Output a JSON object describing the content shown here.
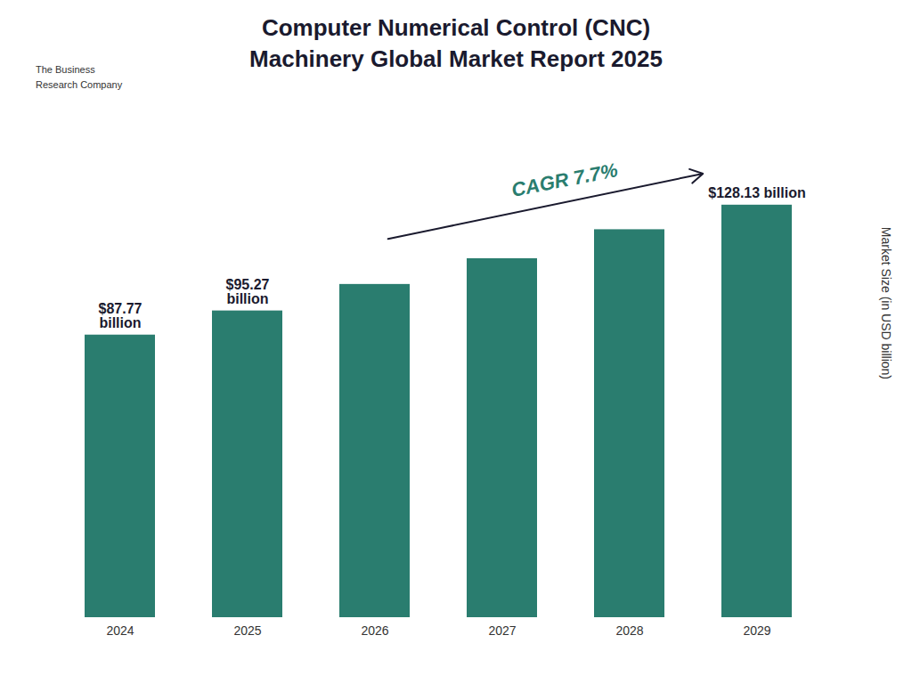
{
  "chart_data": {
    "type": "bar",
    "title": "Computer Numerical Control (CNC)\nMachinery Global Market Report 2025",
    "categories": [
      "2024",
      "2025",
      "2026",
      "2027",
      "2028",
      "2029"
    ],
    "values": [
      87.77,
      95.27,
      103.5,
      111.5,
      120.5,
      128.13
    ],
    "value_labels": [
      "$87.77\nbillion",
      "$95.27\nbillion",
      null,
      null,
      null,
      "$128.13 billion"
    ],
    "color": "#2a7d6f",
    "ylabel": "Market Size (in USD billion)",
    "ylim": [
      0,
      148
    ],
    "tick_labels": "x",
    "annotations": [
      "CAGR 7.7%",
      "The Business\nResearch Company"
    ]
  }
}
